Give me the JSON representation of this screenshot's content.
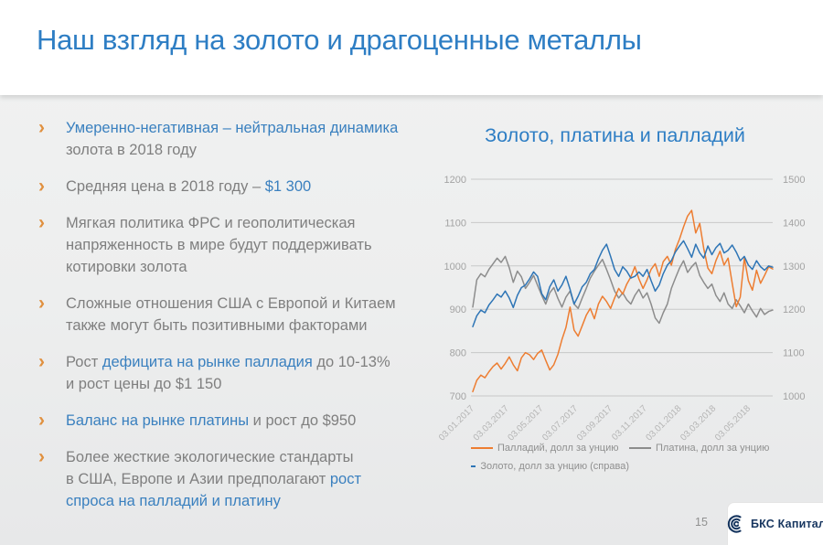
{
  "slide": {
    "title": "Наш взгляд на золото и драгоценные металлы",
    "page_number": "15",
    "logo_text": "БКС Капитал"
  },
  "colors": {
    "title_blue": "#2e7ec4",
    "accent_blue": "#3a80bf",
    "body_gray": "#7f7f7f",
    "marker_orange": "#e0903f",
    "grid_gray": "#c8c8c8",
    "axis_label_gray": "#a3a3a3",
    "logo_navy": "#16355f"
  },
  "bullets": {
    "marker": "›",
    "items": [
      {
        "segments": [
          {
            "t": "Умеренно-негативная – нейтральная динамика",
            "a": 1,
            "br": 1
          },
          {
            "t": "золота в 2018 году",
            "a": 0
          }
        ]
      },
      {
        "segments": [
          {
            "t": "Средняя цена в 2018 году – ",
            "a": 0
          },
          {
            "t": "$1 300",
            "a": 1
          }
        ]
      },
      {
        "segments": [
          {
            "t": "Мягкая политика ФРС и геополитическая",
            "a": 0,
            "br": 1
          },
          {
            "t": "напряженность в мире будут поддерживать",
            "a": 0,
            "br": 1
          },
          {
            "t": "котировки золота",
            "a": 0
          }
        ]
      },
      {
        "segments": [
          {
            "t": "Сложные отношения США с Европой и Китаем",
            "a": 0,
            "br": 1
          },
          {
            "t": "также могут быть позитивными факторами",
            "a": 0
          }
        ]
      },
      {
        "segments": [
          {
            "t": "Рост ",
            "a": 0
          },
          {
            "t": "дефицита на рынке палладия",
            "a": 1
          },
          {
            "t": " до 10-13%",
            "a": 0,
            "br": 1
          },
          {
            "t": "и рост цены до $1 150",
            "a": 0
          }
        ]
      },
      {
        "segments": [
          {
            "t": "Баланс на рынке платины",
            "a": 1
          },
          {
            "t": " и рост до $950",
            "a": 0
          }
        ]
      },
      {
        "segments": [
          {
            "t": "Более жесткие экологические стандарты",
            "a": 0,
            "br": 1
          },
          {
            "t": "в США, Европе и Азии предполагают ",
            "a": 0
          },
          {
            "t": "рост",
            "a": 1,
            "br": 1
          },
          {
            "t": "спроса на палладий и платину",
            "a": 1
          }
        ]
      }
    ]
  },
  "chart_data": {
    "type": "line",
    "title": "Золото, платина и палладий",
    "grid": true,
    "legend_position": "bottom",
    "left_axis": {
      "min": 700,
      "max": 1200,
      "ticks": [
        1200,
        1100,
        1000,
        900,
        800,
        700
      ]
    },
    "right_axis": {
      "min": 1000,
      "max": 1500,
      "ticks": [
        1500,
        1400,
        1300,
        1200,
        1100,
        1000
      ]
    },
    "x_tick_labels": [
      "03.01.2017",
      "03.03.2017",
      "03.05.2017",
      "03.07.2017",
      "03.09.2017",
      "03.11.2017",
      "03.01.2018",
      "03.03.2018",
      "03.05.2018"
    ],
    "x_range_note": "weekly points, 03.01.2017 – early 06.2018",
    "series": [
      {
        "name": "Палладий, долл за унцию",
        "color": "#ED7D31",
        "axis": "left",
        "values": [
          710,
          736,
          748,
          742,
          756,
          768,
          776,
          762,
          775,
          790,
          772,
          758,
          788,
          800,
          795,
          784,
          798,
          806,
          782,
          760,
          772,
          796,
          830,
          858,
          905,
          852,
          838,
          862,
          886,
          902,
          878,
          912,
          930,
          918,
          902,
          926,
          948,
          935,
          958,
          975,
          998,
          970,
          948,
          968,
          992,
          1005,
          976,
          1010,
          1022,
          1002,
          1038,
          1062,
          1090,
          1115,
          1128,
          1076,
          1098,
          1040,
          995,
          982,
          1012,
          1034,
          1002,
          1018,
          960,
          906,
          928,
          1018,
          966,
          944,
          990,
          960,
          978,
          998,
          993
        ]
      },
      {
        "name": "Платина, долл за унцию",
        "color": "#8C8C8C",
        "axis": "left",
        "values": [
          905,
          968,
          982,
          975,
          992,
          1005,
          1018,
          1008,
          1022,
          996,
          962,
          988,
          975,
          948,
          962,
          978,
          955,
          932,
          912,
          938,
          950,
          925,
          905,
          928,
          942,
          912,
          902,
          926,
          948,
          972,
          988,
          1002,
          1015,
          992,
          968,
          942,
          926,
          938,
          922,
          912,
          932,
          946,
          926,
          938,
          912,
          880,
          868,
          892,
          912,
          948,
          972,
          995,
          1012,
          985,
          998,
          1008,
          978,
          962,
          948,
          958,
          932,
          918,
          938,
          912,
          902,
          922,
          908,
          892,
          912,
          896,
          882,
          902,
          888,
          895,
          898
        ]
      },
      {
        "name": "Золото, долл за унцию (справа)",
        "color": "#2E75B6",
        "axis": "right",
        "values": [
          1160,
          1185,
          1198,
          1192,
          1210,
          1222,
          1235,
          1228,
          1242,
          1226,
          1204,
          1232,
          1250,
          1256,
          1270,
          1286,
          1276,
          1236,
          1222,
          1252,
          1268,
          1242,
          1256,
          1276,
          1246,
          1212,
          1230,
          1252,
          1262,
          1282,
          1292,
          1316,
          1336,
          1350,
          1322,
          1292,
          1276,
          1298,
          1288,
          1272,
          1276,
          1286,
          1276,
          1292,
          1266,
          1242,
          1256,
          1282,
          1302,
          1312,
          1332,
          1346,
          1358,
          1340,
          1320,
          1350,
          1330,
          1318,
          1346,
          1326,
          1342,
          1352,
          1330,
          1336,
          1348,
          1332,
          1312,
          1322,
          1302,
          1292,
          1312,
          1298,
          1290,
          1300,
          1297
        ]
      }
    ]
  }
}
